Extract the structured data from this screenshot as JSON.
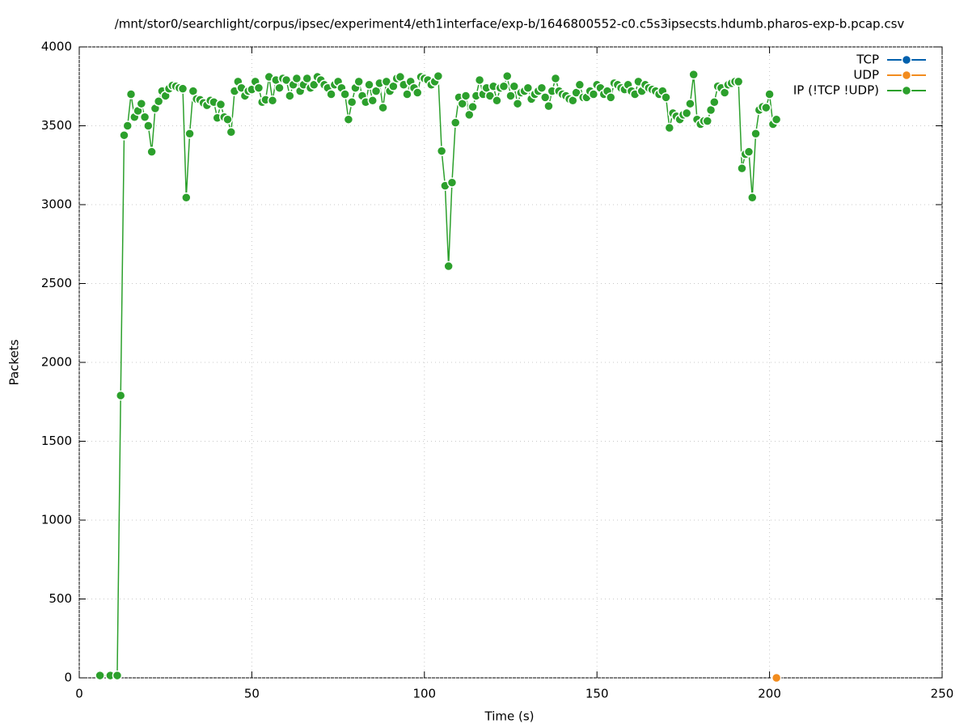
{
  "chart_data": {
    "type": "line",
    "title": "/mnt/stor0/searchlight/corpus/ipsec/experiment4/eth1interface/exp-b/1646800552-c0.c5s3ipsecsts.hdumb.pharos-exp-b.pcap.csv",
    "x_label": "Time (s)",
    "y_label": "Packets",
    "xlim": [
      0,
      250
    ],
    "xticks": [
      0,
      50,
      100,
      150,
      200,
      250
    ],
    "ylim": [
      0,
      4000
    ],
    "yticks": [
      0,
      500,
      1000,
      1500,
      2000,
      2500,
      3000,
      3500,
      4000
    ],
    "grid": true,
    "legend": "top-right",
    "series": [
      {
        "name": "TCP",
        "color": "#0060ad",
        "x": [],
        "values": []
      },
      {
        "name": "UDP",
        "color": "#f28c1e",
        "x": [
          202
        ],
        "values": [
          0
        ]
      },
      {
        "name": "IP (!TCP  !UDP)",
        "color": "#2ca02c",
        "x": [
          6,
          9,
          11,
          12,
          13,
          14,
          15,
          16,
          17,
          18,
          19,
          20,
          21,
          22,
          23,
          24,
          25,
          26,
          27,
          28,
          29,
          30,
          31,
          32,
          33,
          34,
          35,
          36,
          37,
          38,
          39,
          40,
          41,
          42,
          43,
          44,
          45,
          46,
          47,
          48,
          49,
          50,
          51,
          52,
          53,
          54,
          55,
          56,
          57,
          58,
          59,
          60,
          61,
          62,
          63,
          64,
          65,
          66,
          67,
          68,
          69,
          70,
          71,
          72,
          73,
          74,
          75,
          76,
          77,
          78,
          79,
          80,
          81,
          82,
          83,
          84,
          85,
          86,
          87,
          88,
          89,
          90,
          91,
          92,
          93,
          94,
          95,
          96,
          97,
          98,
          99,
          100,
          101,
          102,
          103,
          104,
          105,
          106,
          107,
          108,
          109,
          110,
          111,
          112,
          113,
          114,
          115,
          116,
          117,
          118,
          119,
          120,
          121,
          122,
          123,
          124,
          125,
          126,
          127,
          128,
          129,
          130,
          131,
          132,
          133,
          134,
          135,
          136,
          137,
          138,
          139,
          140,
          141,
          142,
          143,
          144,
          145,
          146,
          147,
          148,
          149,
          150,
          151,
          152,
          153,
          154,
          155,
          156,
          157,
          158,
          159,
          160,
          161,
          162,
          163,
          164,
          165,
          166,
          167,
          168,
          169,
          170,
          171,
          172,
          173,
          174,
          175,
          176,
          177,
          178,
          179,
          180,
          181,
          182,
          183,
          184,
          185,
          186,
          187,
          188,
          189,
          190,
          191,
          192,
          193,
          194,
          195,
          196,
          197,
          198,
          199,
          200,
          201,
          202
        ],
        "values": [
          15,
          15,
          15,
          1790,
          3440,
          3500,
          3700,
          3555,
          3595,
          3640,
          3555,
          3500,
          3335,
          3610,
          3655,
          3720,
          3690,
          3735,
          3755,
          3750,
          3740,
          3735,
          3045,
          3450,
          3720,
          3670,
          3665,
          3645,
          3630,
          3660,
          3650,
          3550,
          3635,
          3555,
          3540,
          3460,
          3720,
          3780,
          3740,
          3690,
          3720,
          3730,
          3780,
          3740,
          3650,
          3665,
          3810,
          3660,
          3790,
          3740,
          3800,
          3790,
          3690,
          3760,
          3800,
          3720,
          3760,
          3800,
          3740,
          3760,
          3810,
          3790,
          3760,
          3740,
          3700,
          3760,
          3780,
          3740,
          3700,
          3540,
          3650,
          3740,
          3780,
          3690,
          3650,
          3760,
          3660,
          3720,
          3770,
          3615,
          3780,
          3720,
          3750,
          3800,
          3810,
          3760,
          3700,
          3780,
          3740,
          3710,
          3810,
          3800,
          3790,
          3760,
          3780,
          3815,
          3340,
          3120,
          2610,
          3140,
          3520,
          3680,
          3640,
          3690,
          3570,
          3620,
          3690,
          3790,
          3700,
          3740,
          3690,
          3750,
          3660,
          3740,
          3750,
          3815,
          3690,
          3750,
          3640,
          3710,
          3720,
          3740,
          3670,
          3700,
          3720,
          3740,
          3680,
          3625,
          3720,
          3800,
          3720,
          3700,
          3690,
          3670,
          3660,
          3710,
          3760,
          3680,
          3680,
          3720,
          3700,
          3760,
          3740,
          3700,
          3720,
          3680,
          3770,
          3760,
          3740,
          3730,
          3760,
          3720,
          3700,
          3780,
          3720,
          3760,
          3740,
          3730,
          3720,
          3700,
          3720,
          3680,
          3487,
          3580,
          3560,
          3540,
          3570,
          3580,
          3640,
          3825,
          3540,
          3510,
          3530,
          3530,
          3600,
          3650,
          3750,
          3740,
          3710,
          3760,
          3770,
          3780,
          3780,
          3230,
          3320,
          3335,
          3045,
          3450,
          3600,
          3620,
          3615,
          3700,
          3510,
          3540
        ]
      }
    ]
  }
}
